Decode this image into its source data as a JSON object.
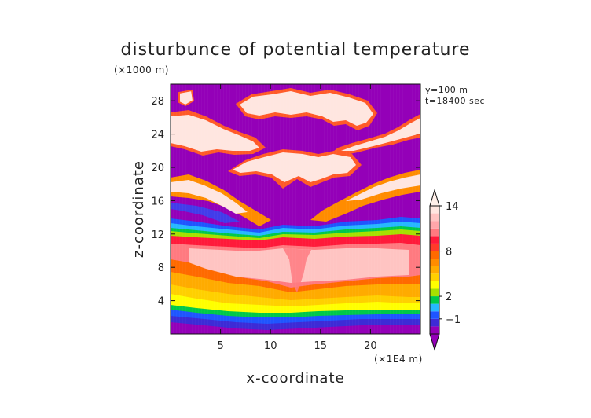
{
  "chart_data": {
    "type": "heatmap",
    "title": "disturbunce of potential temperature",
    "ylabel": "z-coordinate",
    "xlabel": "x-coordinate",
    "y_unit": "(×1000 m)",
    "x_unit": "(×1E4 m)",
    "annotations": [
      "y=100 m",
      "t=18400 sec"
    ],
    "xlim": [
      0,
      25
    ],
    "ylim": [
      0,
      30
    ],
    "x_ticks": [
      5,
      10,
      15,
      20
    ],
    "y_ticks": [
      4,
      8,
      12,
      16,
      20,
      24,
      28
    ],
    "colorbar_labels": [
      {
        "value": 14,
        "text": "14"
      },
      {
        "value": 8,
        "text": "8"
      },
      {
        "value": 2,
        "text": "2"
      },
      {
        "value": -1,
        "text": "−1"
      }
    ],
    "colorbar_levels": [
      {
        "color": "#9400b8"
      },
      {
        "color": "#3d2bd6"
      },
      {
        "color": "#1f55ff"
      },
      {
        "color": "#26b8ff"
      },
      {
        "color": "#00c84a"
      },
      {
        "color": "#a6e000"
      },
      {
        "color": "#ffff00"
      },
      {
        "color": "#ffd000"
      },
      {
        "color": "#ffab00"
      },
      {
        "color": "#ff8c00"
      },
      {
        "color": "#ff6a00"
      },
      {
        "color": "#ff3a2a"
      },
      {
        "color": "#ff1a3a"
      },
      {
        "color": "#ff7a80"
      },
      {
        "color": "#ffa6aa"
      },
      {
        "color": "#ffc4c2"
      },
      {
        "color": "#ffe6e0"
      }
    ],
    "legend_position": "right",
    "colorbar_arrows": {
      "top": "#fff0ea",
      "bottom": "#9400b8"
    }
  }
}
